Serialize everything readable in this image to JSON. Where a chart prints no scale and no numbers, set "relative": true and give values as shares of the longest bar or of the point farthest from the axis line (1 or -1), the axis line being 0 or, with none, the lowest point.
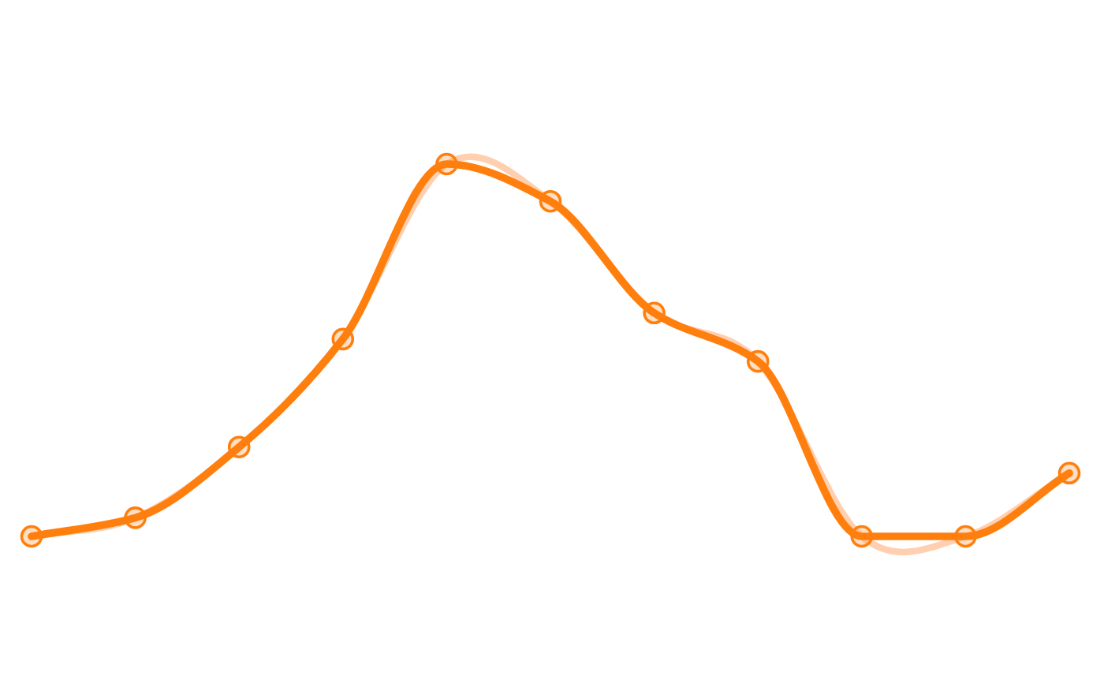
{
  "chart_data": {
    "type": "line",
    "relative": true,
    "categories": [
      null,
      null,
      null,
      null,
      null,
      null,
      null,
      null,
      null,
      null,
      null
    ],
    "series": [
      {
        "color": "#ffcfb0",
        "marker": "none",
        "values": [
          0,
          0.05,
          0.24,
          0.53,
          1,
          0.9,
          0.6,
          0.47,
          0,
          0,
          0.17
        ]
      },
      {
        "color": "#ff7f0e",
        "marker": "circle",
        "values": [
          0,
          0.05,
          0.24,
          0.53,
          1,
          0.9,
          0.6,
          0.47,
          0,
          0,
          0.17
        ]
      }
    ],
    "legend": false
  }
}
